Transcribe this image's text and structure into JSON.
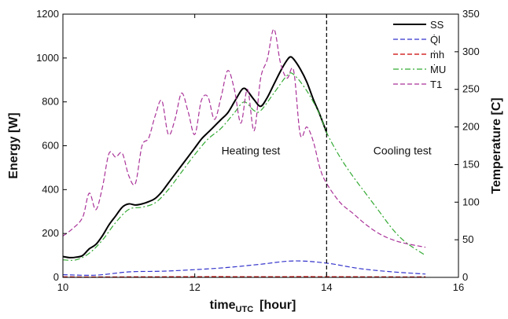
{
  "chart_data": {
    "type": "line",
    "xlabel": "time",
    "xlabel_sub": "UTC",
    "xlabel_unit": "[hour]",
    "ylabel": "Energy [W]",
    "y2label": "Temperature [C]",
    "xlim": [
      10,
      16
    ],
    "ylim": [
      0,
      1200
    ],
    "y2lim": [
      0,
      350
    ],
    "xticks": [
      10,
      12,
      14,
      16
    ],
    "yticks": [
      0,
      200,
      400,
      600,
      800,
      1000,
      1200
    ],
    "y2ticks": [
      0,
      50,
      100,
      150,
      200,
      250,
      300,
      350
    ],
    "grid": false,
    "legend_position": "top-right",
    "vline": {
      "x": 14.0,
      "style": "dashed",
      "color": "#000000"
    },
    "annotations": [
      {
        "text": "Heating test",
        "x": 12.85,
        "y": 560
      },
      {
        "text": "Cooling test",
        "x": 15.15,
        "y": 560
      }
    ],
    "series": [
      {
        "name": "SS",
        "axis": "left",
        "color": "#000000",
        "style": "solid",
        "x": [
          10.0,
          10.1,
          10.2,
          10.3,
          10.4,
          10.5,
          10.6,
          10.7,
          10.8,
          10.9,
          11.0,
          11.1,
          11.2,
          11.3,
          11.4,
          11.5,
          11.6,
          11.7,
          11.8,
          11.9,
          12.0,
          12.1,
          12.2,
          12.3,
          12.4,
          12.5,
          12.6,
          12.7,
          12.75,
          12.8,
          12.9,
          13.0,
          13.1,
          13.2,
          13.3,
          13.4,
          13.45,
          13.5,
          13.6,
          13.7,
          13.8,
          13.9,
          14.0
        ],
        "y": [
          95,
          90,
          92,
          100,
          130,
          150,
          190,
          240,
          280,
          320,
          335,
          330,
          335,
          345,
          360,
          390,
          430,
          470,
          510,
          550,
          590,
          630,
          660,
          690,
          720,
          750,
          800,
          850,
          862,
          850,
          810,
          780,
          820,
          880,
          940,
          990,
          1005,
          995,
          950,
          890,
          810,
          740,
          660
        ]
      },
      {
        "name": "Q̇l",
        "axis": "left",
        "color": "#3333cc",
        "style": "dashed",
        "x": [
          10.0,
          10.5,
          11.0,
          11.5,
          12.0,
          12.5,
          13.0,
          13.5,
          14.0,
          14.5,
          15.0,
          15.5
        ],
        "y": [
          12,
          10,
          25,
          28,
          35,
          45,
          60,
          75,
          65,
          40,
          25,
          15
        ]
      },
      {
        "name": "ṁh",
        "axis": "left",
        "color": "#cc0000",
        "style": "dashed",
        "x": [
          10.0,
          11.0,
          12.0,
          13.0,
          14.0,
          15.0,
          15.5
        ],
        "y": [
          2,
          2,
          3,
          3,
          3,
          2,
          2
        ]
      },
      {
        "name": "ṀU",
        "axis": "left",
        "color": "#33aa33",
        "style": "dashdot",
        "x": [
          10.0,
          10.2,
          10.4,
          10.6,
          10.8,
          11.0,
          11.2,
          11.4,
          11.6,
          11.8,
          12.0,
          12.2,
          12.4,
          12.6,
          12.75,
          12.9,
          13.0,
          13.2,
          13.4,
          13.5,
          13.7,
          13.9,
          14.0,
          14.2,
          14.4,
          14.6,
          14.8,
          15.0,
          15.2,
          15.5
        ],
        "y": [
          80,
          80,
          110,
          170,
          250,
          310,
          320,
          340,
          400,
          480,
          560,
          630,
          680,
          750,
          800,
          760,
          760,
          840,
          920,
          925,
          850,
          740,
          660,
          550,
          460,
          380,
          300,
          220,
          160,
          100
        ]
      },
      {
        "name": "T1",
        "axis": "right",
        "color": "#aa3399",
        "style": "dashed",
        "x": [
          10.0,
          10.15,
          10.3,
          10.4,
          10.5,
          10.6,
          10.7,
          10.8,
          10.9,
          11.0,
          11.1,
          11.2,
          11.3,
          11.4,
          11.5,
          11.6,
          11.7,
          11.8,
          11.9,
          12.0,
          12.1,
          12.2,
          12.3,
          12.4,
          12.5,
          12.6,
          12.7,
          12.8,
          12.9,
          13.0,
          13.1,
          13.2,
          13.3,
          13.4,
          13.5,
          13.6,
          13.7,
          13.8,
          13.9,
          14.0,
          14.2,
          14.4,
          14.6,
          14.8,
          15.0,
          15.2,
          15.5
        ],
        "y": [
          55,
          65,
          80,
          112,
          90,
          120,
          165,
          160,
          165,
          135,
          125,
          175,
          185,
          215,
          235,
          190,
          210,
          245,
          220,
          190,
          235,
          240,
          210,
          240,
          275,
          250,
          205,
          250,
          195,
          265,
          290,
          330,
          285,
          265,
          275,
          190,
          200,
          180,
          145,
          125,
          100,
          85,
          70,
          58,
          50,
          45,
          40
        ]
      }
    ]
  }
}
